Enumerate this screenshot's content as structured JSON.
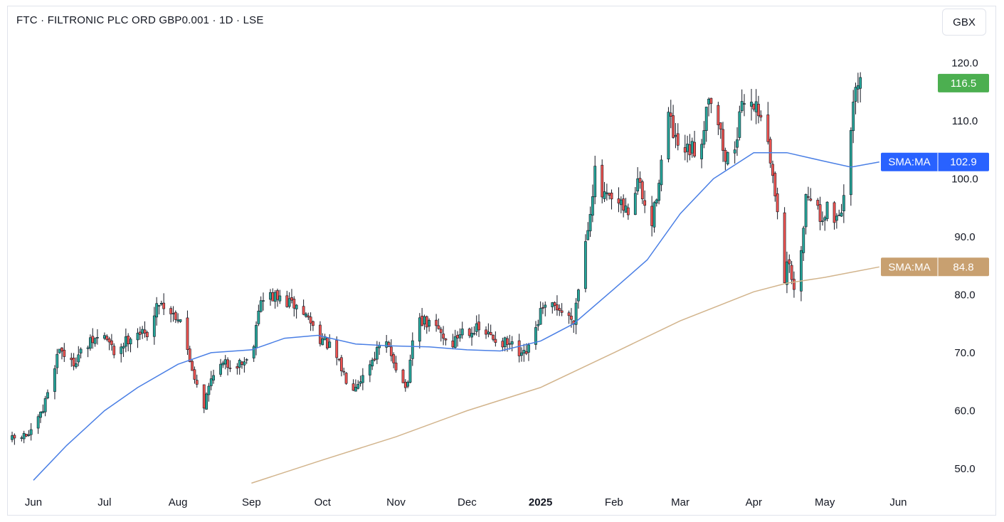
{
  "header": {
    "title": "FTC · FILTRONIC PLC ORD GBP0.001 · 1D · LSE",
    "currency_button": "GBX"
  },
  "colors": {
    "up": "#26a69a",
    "down": "#ef5350",
    "sma_fast": "#4a7fe5",
    "sma_slow": "#d2b48c",
    "last_price_tag": "#4caf50",
    "sma_fast_tag": "#2962ff",
    "sma_slow_tag": "#c8a070"
  },
  "chart_data": {
    "type": "candlestick",
    "y_axis": {
      "ticks": [
        50.0,
        60.0,
        70.0,
        80.0,
        90.0,
        100.0,
        110.0,
        120.0
      ],
      "ylim": [
        47.5,
        122.5
      ],
      "side": "right"
    },
    "x_axis": {
      "labels": [
        {
          "label": "Jun",
          "date": "2024-06-01"
        },
        {
          "label": "Jul",
          "date": "2024-07-01"
        },
        {
          "label": "Aug",
          "date": "2024-08-01"
        },
        {
          "label": "Sep",
          "date": "2024-09-01"
        },
        {
          "label": "Oct",
          "date": "2024-10-01"
        },
        {
          "label": "Nov",
          "date": "2024-11-01"
        },
        {
          "label": "Dec",
          "date": "2024-12-01"
        },
        {
          "label": "2025",
          "date": "2025-01-01",
          "bold": true
        },
        {
          "label": "Feb",
          "date": "2025-02-01"
        },
        {
          "label": "Mar",
          "date": "2025-03-01"
        },
        {
          "label": "Apr",
          "date": "2025-04-01"
        },
        {
          "label": "May",
          "date": "2025-05-01"
        },
        {
          "label": "Jun",
          "date": "2025-06-01"
        }
      ]
    },
    "tags": [
      {
        "name": "last",
        "label": "",
        "value": 116.5,
        "text": "116.5"
      },
      {
        "name": "sma-fast",
        "label": "SMA:MA",
        "value": 102.9,
        "text": "102.9"
      },
      {
        "name": "sma-slow",
        "label": "SMA:MA",
        "value": 84.8,
        "text": "84.8"
      }
    ],
    "close_path": [
      [
        "2024-05-23",
        55
      ],
      [
        "2024-05-31",
        56
      ],
      [
        "2024-06-05",
        60
      ],
      [
        "2024-06-08",
        65
      ],
      [
        "2024-06-12",
        71
      ],
      [
        "2024-06-17",
        68
      ],
      [
        "2024-06-21",
        70
      ],
      [
        "2024-06-26",
        72
      ],
      [
        "2024-07-01",
        73
      ],
      [
        "2024-07-05",
        70
      ],
      [
        "2024-07-10",
        72
      ],
      [
        "2024-07-14",
        74
      ],
      [
        "2024-07-18",
        73
      ],
      [
        "2024-07-21",
        75
      ],
      [
        "2024-07-24",
        79
      ],
      [
        "2024-07-29",
        77
      ],
      [
        "2024-08-02",
        76
      ],
      [
        "2024-08-05",
        70
      ],
      [
        "2024-08-08",
        66
      ],
      [
        "2024-08-12",
        61
      ],
      [
        "2024-08-16",
        67
      ],
      [
        "2024-08-21",
        68
      ],
      [
        "2024-08-25",
        68
      ],
      [
        "2024-09-01",
        69
      ],
      [
        "2024-09-04",
        78
      ],
      [
        "2024-09-08",
        80
      ],
      [
        "2024-09-14",
        79
      ],
      [
        "2024-09-20",
        78
      ],
      [
        "2024-09-25",
        76
      ],
      [
        "2024-09-29",
        73
      ],
      [
        "2024-10-04",
        71
      ],
      [
        "2024-10-08",
        68
      ],
      [
        "2024-10-13",
        64
      ],
      [
        "2024-10-18",
        66
      ],
      [
        "2024-10-22",
        69
      ],
      [
        "2024-10-27",
        72
      ],
      [
        "2024-10-31",
        69
      ],
      [
        "2024-11-03",
        65
      ],
      [
        "2024-11-06",
        64
      ],
      [
        "2024-11-09",
        76
      ],
      [
        "2024-11-14",
        75
      ],
      [
        "2024-11-19",
        74
      ],
      [
        "2024-11-24",
        71
      ],
      [
        "2024-11-29",
        74
      ],
      [
        "2024-12-05",
        74
      ],
      [
        "2024-12-10",
        73
      ],
      [
        "2024-12-15",
        72
      ],
      [
        "2024-12-20",
        71
      ],
      [
        "2024-12-24",
        69
      ],
      [
        "2024-12-28",
        71
      ],
      [
        "2025-01-01",
        77
      ],
      [
        "2025-01-08",
        78
      ],
      [
        "2025-01-12",
        76
      ],
      [
        "2025-01-15",
        76
      ],
      [
        "2025-01-18",
        84
      ],
      [
        "2025-01-21",
        92
      ],
      [
        "2025-01-24",
        101
      ],
      [
        "2025-01-27",
        97
      ],
      [
        "2025-01-31",
        96
      ],
      [
        "2025-02-04",
        95
      ],
      [
        "2025-02-08",
        94
      ],
      [
        "2025-02-11",
        100
      ],
      [
        "2025-02-14",
        95
      ],
      [
        "2025-02-17",
        92
      ],
      [
        "2025-02-21",
        103
      ],
      [
        "2025-02-24",
        111
      ],
      [
        "2025-02-27",
        106
      ],
      [
        "2025-03-02",
        104
      ],
      [
        "2025-03-06",
        105
      ],
      [
        "2025-03-09",
        104
      ],
      [
        "2025-03-13",
        115
      ],
      [
        "2025-03-17",
        110
      ],
      [
        "2025-03-20",
        103
      ],
      [
        "2025-03-24",
        106
      ],
      [
        "2025-03-28",
        114
      ],
      [
        "2025-04-01",
        113
      ],
      [
        "2025-04-05",
        111
      ],
      [
        "2025-04-09",
        100
      ],
      [
        "2025-04-12",
        93
      ],
      [
        "2025-04-14",
        83
      ],
      [
        "2025-04-16",
        86
      ],
      [
        "2025-04-18",
        80
      ],
      [
        "2025-04-20",
        84
      ],
      [
        "2025-04-23",
        97
      ],
      [
        "2025-04-26",
        98
      ],
      [
        "2025-04-29",
        93
      ],
      [
        "2025-05-02",
        95
      ],
      [
        "2025-05-05",
        93
      ],
      [
        "2025-05-08",
        95
      ],
      [
        "2025-05-11",
        101
      ],
      [
        "2025-05-13",
        113
      ],
      [
        "2025-05-17",
        118
      ],
      [
        "2025-05-21",
        119
      ],
      [
        "2025-05-24",
        116.5
      ]
    ],
    "series": [
      {
        "kind": "sma",
        "color_key": "sma_fast",
        "points": [
          [
            "2024-06-01",
            48
          ],
          [
            "2024-06-15",
            54
          ],
          [
            "2024-07-01",
            60
          ],
          [
            "2024-07-15",
            64
          ],
          [
            "2024-08-01",
            68
          ],
          [
            "2024-08-15",
            70
          ],
          [
            "2024-09-01",
            70.5
          ],
          [
            "2024-09-15",
            72.5
          ],
          [
            "2024-09-29",
            73
          ],
          [
            "2024-10-15",
            71.5
          ],
          [
            "2024-10-29",
            71.2
          ],
          [
            "2024-11-15",
            71
          ],
          [
            "2024-12-01",
            70.5
          ],
          [
            "2024-12-15",
            70.3
          ],
          [
            "2025-01-01",
            72
          ],
          [
            "2025-01-15",
            75
          ],
          [
            "2025-02-01",
            81
          ],
          [
            "2025-02-15",
            86
          ],
          [
            "2025-03-01",
            94
          ],
          [
            "2025-03-15",
            100
          ],
          [
            "2025-04-01",
            104.5
          ],
          [
            "2025-04-15",
            104.5
          ],
          [
            "2025-05-01",
            103
          ],
          [
            "2025-05-12",
            102
          ],
          [
            "2025-05-24",
            102.9
          ]
        ]
      },
      {
        "kind": "sma",
        "color_key": "sma_slow",
        "points": [
          [
            "2024-09-01",
            47.5
          ],
          [
            "2024-10-01",
            51.5
          ],
          [
            "2024-11-01",
            55.5
          ],
          [
            "2024-12-01",
            60
          ],
          [
            "2025-01-01",
            64
          ],
          [
            "2025-02-01",
            70
          ],
          [
            "2025-03-01",
            75.5
          ],
          [
            "2025-04-01",
            80.5
          ],
          [
            "2025-04-15",
            82
          ],
          [
            "2025-05-01",
            83
          ],
          [
            "2025-05-24",
            84.8
          ]
        ]
      }
    ]
  }
}
